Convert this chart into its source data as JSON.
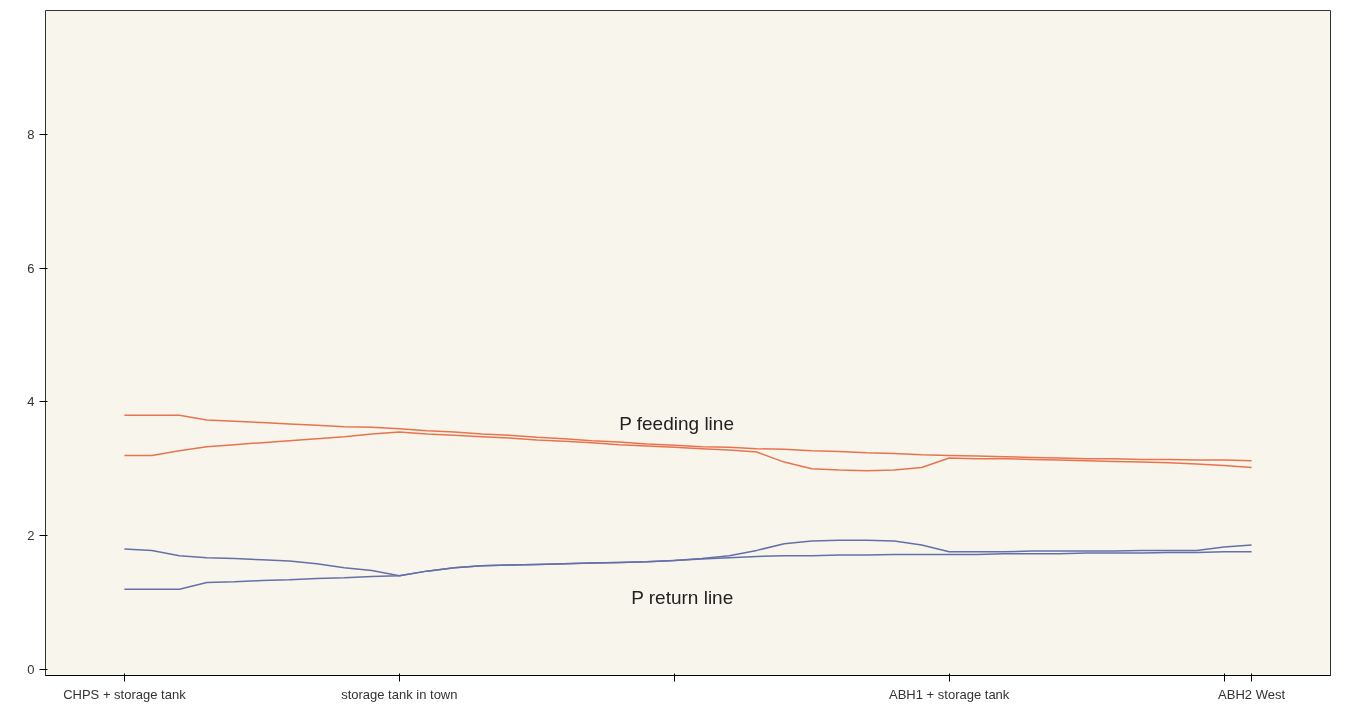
{
  "chart_data": {
    "type": "line",
    "categories": [
      "CHPS + storage tank",
      null,
      null,
      null,
      null,
      null,
      null,
      null,
      null,
      null,
      "storage tank in town",
      null,
      null,
      null,
      null,
      null,
      null,
      null,
      null,
      null,
      null,
      null,
      null,
      null,
      null,
      null,
      null,
      null,
      null,
      null,
      "ABH1 + storage tank",
      null,
      null,
      null,
      null,
      null,
      null,
      null,
      null,
      null,
      null,
      "ABH2 West"
    ],
    "ylim": [
      -0.09,
      9.85
    ],
    "yticks": [
      0,
      2,
      4,
      6,
      8
    ],
    "grid": false,
    "marker": "none",
    "line_style": "solid",
    "series": [
      {
        "color": "#e8744e",
        "values": [
          3.8,
          3.8,
          3.8,
          3.73,
          3.71,
          3.69,
          3.67,
          3.65,
          3.63,
          3.62,
          3.6,
          3.57,
          3.55,
          3.52,
          3.5,
          3.47,
          3.45,
          3.42,
          3.4,
          3.37,
          3.35,
          3.33,
          3.32,
          3.3,
          3.29,
          3.27,
          3.26,
          3.24,
          3.23,
          3.21,
          3.2,
          3.19,
          3.18,
          3.17,
          3.16,
          3.15,
          3.15,
          3.14,
          3.14,
          3.13,
          3.13,
          3.12
        ]
      },
      {
        "color": "#e8744e",
        "values": [
          3.2,
          3.2,
          3.27,
          3.33,
          3.36,
          3.39,
          3.42,
          3.45,
          3.48,
          3.52,
          3.55,
          3.52,
          3.5,
          3.48,
          3.46,
          3.43,
          3.41,
          3.39,
          3.36,
          3.34,
          3.32,
          3.3,
          3.28,
          3.25,
          3.1,
          3.0,
          2.98,
          2.97,
          2.98,
          3.02,
          3.16,
          3.15,
          3.15,
          3.14,
          3.13,
          3.12,
          3.11,
          3.1,
          3.09,
          3.07,
          3.05,
          3.02
        ]
      },
      {
        "color": "#6470a8",
        "values": [
          1.8,
          1.78,
          1.7,
          1.67,
          1.66,
          1.64,
          1.62,
          1.58,
          1.52,
          1.48,
          1.4,
          1.47,
          1.52,
          1.55,
          1.56,
          1.57,
          1.58,
          1.59,
          1.6,
          1.61,
          1.63,
          1.66,
          1.7,
          1.78,
          1.88,
          1.92,
          1.93,
          1.93,
          1.92,
          1.86,
          1.76,
          1.76,
          1.76,
          1.77,
          1.77,
          1.77,
          1.77,
          1.78,
          1.78,
          1.78,
          1.83,
          1.86
        ]
      },
      {
        "color": "#6470a8",
        "values": [
          1.2,
          1.2,
          1.2,
          1.3,
          1.31,
          1.33,
          1.34,
          1.36,
          1.37,
          1.39,
          1.4,
          1.47,
          1.52,
          1.55,
          1.56,
          1.57,
          1.58,
          1.59,
          1.6,
          1.61,
          1.63,
          1.65,
          1.67,
          1.69,
          1.7,
          1.7,
          1.71,
          1.71,
          1.72,
          1.72,
          1.72,
          1.72,
          1.73,
          1.73,
          1.73,
          1.74,
          1.74,
          1.74,
          1.75,
          1.75,
          1.76,
          1.76
        ]
      }
    ],
    "annotations": [
      "P feeding line",
      "P return line"
    ]
  }
}
